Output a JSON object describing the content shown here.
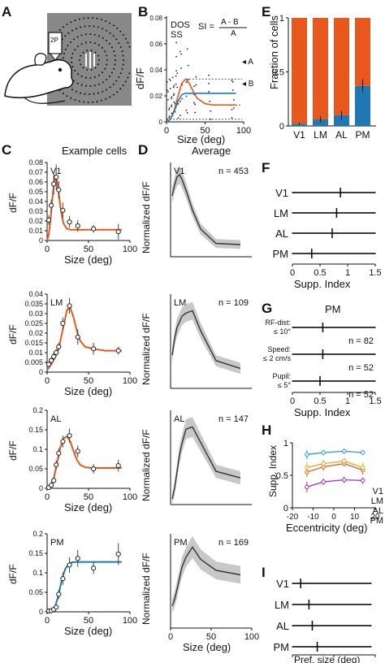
{
  "panel_letters": {
    "A": "A",
    "B": "B",
    "C": "C",
    "D": "D",
    "E": "E",
    "F": "F",
    "G": "G",
    "H": "H",
    "I": "I"
  },
  "panel_a": {
    "scope_label": "2P"
  },
  "panel_b": {
    "ylabel": "dF/F",
    "xlabel": "Size (deg)",
    "legend": [
      "DOS",
      "SS"
    ],
    "formula_lhs": "SI =",
    "formula_num": "A - B",
    "formula_den": "A",
    "marker_a": "◂ A",
    "marker_b": "◂ B",
    "xticks": [
      "0",
      "50",
      "100"
    ],
    "yticks": [
      "0",
      "0.02",
      "0.04",
      "0.06",
      "0.08"
    ]
  },
  "panel_c_title": "Example cells",
  "panel_d_title": "Average",
  "panel_e": {
    "ylabel": "Fraction of cells",
    "yticks": [
      "0",
      "0.5",
      "1"
    ]
  },
  "panel_f": {
    "xlabel": "Supp. Index",
    "xticks": [
      "0",
      "0.5",
      "1",
      "1.5"
    ]
  },
  "panel_g": {
    "title": "PM",
    "xlabel": "Supp. Index",
    "xticks": [
      "0",
      "0.5",
      "1",
      "1.5"
    ]
  },
  "panel_h": {
    "ylabel": "Supp. Index",
    "xlabel": "Eccentricity (deg)",
    "xticks": [
      "-20",
      "-10",
      "0",
      "10",
      "20"
    ],
    "yticks": [
      "0",
      "0.5",
      "1"
    ]
  },
  "panel_i": {
    "xlabel": "Pref. size (deg)",
    "xticks": [
      "0",
      "50",
      "100"
    ]
  },
  "colors": {
    "dos": "#e8581c",
    "ss": "#1f78b4",
    "v1": "#1f9bd7",
    "lm": "#e0621f",
    "al": "#eaa520",
    "pm": "#9b30b0",
    "gray": "#888888"
  },
  "chart_data": [
    {
      "id": "B",
      "type": "scatter",
      "xlabel": "Size (deg)",
      "ylabel": "dF/F",
      "xlim": [
        0,
        100
      ],
      "ylim": [
        0,
        0.08
      ],
      "series": [
        {
          "name": "DOS",
          "x": [
            0,
            5,
            10,
            15,
            20,
            25,
            30,
            35,
            40,
            50,
            60,
            70,
            80,
            90
          ],
          "values": [
            0.0,
            0.002,
            0.009,
            0.02,
            0.03,
            0.033,
            0.029,
            0.023,
            0.018,
            0.014,
            0.013,
            0.013,
            0.013,
            0.013
          ]
        },
        {
          "name": "SS",
          "x": [
            0,
            5,
            10,
            15,
            20,
            25,
            30,
            40,
            60,
            80,
            90
          ],
          "values": [
            0.0,
            0.002,
            0.008,
            0.016,
            0.021,
            0.022,
            0.022,
            0.022,
            0.022,
            0.022,
            0.022
          ]
        }
      ],
      "annotations": {
        "A": 0.033,
        "B": 0.013
      }
    },
    {
      "id": "C-V1",
      "type": "line",
      "area": "V1",
      "xlabel": "Size (deg)",
      "ylabel": "dF/F",
      "xlim": [
        0,
        100
      ],
      "ylim": [
        0,
        0.08
      ],
      "yticks": [
        0,
        0.01,
        0.02,
        0.03,
        0.04,
        0.05,
        0.06,
        0.07,
        0.08
      ],
      "xticks": [
        0,
        50,
        100
      ],
      "points": {
        "x": [
          2,
          5,
          8,
          11,
          14,
          19,
          27,
          37,
          56,
          86
        ],
        "values": [
          0.021,
          0.036,
          0.058,
          0.065,
          0.052,
          0.031,
          0.019,
          0.015,
          0.012,
          0.009
        ],
        "err": [
          0.005,
          0.006,
          0.011,
          0.013,
          0.009,
          0.008,
          0.006,
          0.006,
          0.004,
          0.008
        ]
      },
      "fit": {
        "color": "DOS",
        "x": [
          0,
          2,
          4,
          6,
          8,
          10,
          12,
          14,
          16,
          18,
          20,
          24,
          28,
          34,
          40,
          50,
          60,
          70,
          80,
          90
        ],
        "values": [
          0.0,
          0.006,
          0.02,
          0.04,
          0.057,
          0.065,
          0.061,
          0.049,
          0.035,
          0.024,
          0.017,
          0.012,
          0.011,
          0.011,
          0.011,
          0.011,
          0.011,
          0.011,
          0.011,
          0.011
        ]
      }
    },
    {
      "id": "C-LM",
      "type": "line",
      "area": "LM",
      "xlabel": "Size (deg)",
      "ylabel": "dF/F",
      "xlim": [
        0,
        100
      ],
      "ylim": [
        0,
        0.04
      ],
      "yticks": [
        0,
        0.005,
        0.01,
        0.015,
        0.02,
        0.025,
        0.03,
        0.035,
        0.04
      ],
      "xticks": [
        0,
        50,
        100
      ],
      "points": {
        "x": [
          2,
          5,
          8,
          11,
          14,
          19,
          27,
          37,
          56,
          86
        ],
        "values": [
          0.004,
          0.006,
          0.008,
          0.01,
          0.013,
          0.025,
          0.034,
          0.018,
          0.012,
          0.011
        ],
        "err": [
          0.001,
          0.0015,
          0.002,
          0.002,
          0.002,
          0.003,
          0.004,
          0.004,
          0.003,
          0.002
        ]
      },
      "fit": {
        "color": "DOS",
        "x": [
          0,
          5,
          10,
          15,
          20,
          24,
          28,
          32,
          36,
          40,
          46,
          55,
          70,
          90
        ],
        "values": [
          0.001,
          0.004,
          0.008,
          0.014,
          0.024,
          0.032,
          0.033,
          0.028,
          0.021,
          0.016,
          0.013,
          0.012,
          0.011,
          0.011
        ]
      }
    },
    {
      "id": "C-AL",
      "type": "line",
      "area": "AL",
      "xlabel": "Size (deg)",
      "ylabel": "dF/F",
      "xlim": [
        0,
        100
      ],
      "ylim": [
        0,
        0.2
      ],
      "yticks": [
        0,
        0.05,
        0.1,
        0.15,
        0.2
      ],
      "xticks": [
        0,
        50,
        100
      ],
      "points": {
        "x": [
          2,
          5,
          8,
          11,
          14,
          19,
          27,
          37,
          56,
          86
        ],
        "values": [
          0.002,
          0.008,
          0.02,
          0.06,
          0.09,
          0.12,
          0.135,
          0.095,
          0.05,
          0.058
        ],
        "err": [
          0.003,
          0.005,
          0.008,
          0.012,
          0.013,
          0.015,
          0.018,
          0.015,
          0.012,
          0.015
        ]
      },
      "fit": {
        "color": "DOS",
        "x": [
          0,
          4,
          8,
          12,
          16,
          20,
          24,
          28,
          32,
          36,
          40,
          46,
          55,
          70,
          90
        ],
        "values": [
          0.0,
          0.007,
          0.025,
          0.065,
          0.105,
          0.128,
          0.133,
          0.12,
          0.095,
          0.073,
          0.06,
          0.054,
          0.052,
          0.052,
          0.052
        ]
      }
    },
    {
      "id": "C-PM",
      "type": "line",
      "area": "PM",
      "xlabel": "Size (deg)",
      "ylabel": "dF/F",
      "xlim": [
        0,
        100
      ],
      "ylim": [
        0,
        0.2
      ],
      "yticks": [
        0,
        0.05,
        0.1,
        0.15,
        0.2
      ],
      "xticks": [
        0,
        50,
        100
      ],
      "points": {
        "x": [
          2,
          5,
          8,
          11,
          14,
          19,
          27,
          37,
          56,
          86
        ],
        "values": [
          0.002,
          0.003,
          0.006,
          0.012,
          0.045,
          0.085,
          0.12,
          0.137,
          0.112,
          0.148
        ],
        "err": [
          0.003,
          0.003,
          0.004,
          0.005,
          0.012,
          0.016,
          0.02,
          0.022,
          0.015,
          0.028
        ]
      },
      "fit": {
        "color": "SS",
        "x": [
          0,
          5,
          10,
          14,
          18,
          22,
          26,
          30,
          35,
          40,
          50,
          60,
          70,
          80,
          90
        ],
        "values": [
          0.0,
          0.003,
          0.015,
          0.045,
          0.085,
          0.11,
          0.122,
          0.127,
          0.128,
          0.128,
          0.128,
          0.128,
          0.128,
          0.128,
          0.128
        ]
      }
    },
    {
      "id": "D-V1",
      "type": "line",
      "area": "V1",
      "n_label": "n = 453",
      "ylabel": "Normalized dF/F",
      "xlim": [
        0,
        100
      ],
      "ylim": [
        0,
        0.85
      ],
      "x": [
        2,
        5,
        8,
        11,
        14,
        19,
        27,
        37,
        56,
        86
      ],
      "values": [
        0.55,
        0.65,
        0.72,
        0.74,
        0.7,
        0.6,
        0.42,
        0.25,
        0.12,
        0.11
      ],
      "band": [
        0.07,
        0.07,
        0.08,
        0.08,
        0.08,
        0.07,
        0.06,
        0.05,
        0.04,
        0.04
      ]
    },
    {
      "id": "D-LM",
      "type": "line",
      "area": "LM",
      "n_label": "n = 109",
      "ylabel": "Normalized dF/F",
      "xlim": [
        0,
        100
      ],
      "ylim": [
        0,
        0.85
      ],
      "x": [
        2,
        5,
        8,
        11,
        14,
        19,
        27,
        37,
        56,
        86
      ],
      "values": [
        0.3,
        0.45,
        0.55,
        0.6,
        0.65,
        0.68,
        0.7,
        0.52,
        0.25,
        0.18
      ],
      "band": [
        0.07,
        0.07,
        0.08,
        0.08,
        0.08,
        0.08,
        0.08,
        0.07,
        0.05,
        0.05
      ]
    },
    {
      "id": "D-AL",
      "type": "line",
      "area": "AL",
      "n_label": "n = 147",
      "ylabel": "Normalized dF/F",
      "xlim": [
        0,
        100
      ],
      "ylim": [
        0,
        0.85
      ],
      "x": [
        2,
        5,
        8,
        11,
        14,
        19,
        27,
        37,
        56,
        86
      ],
      "values": [
        0.05,
        0.15,
        0.3,
        0.45,
        0.55,
        0.68,
        0.7,
        0.56,
        0.3,
        0.24
      ],
      "band": [
        0.05,
        0.06,
        0.07,
        0.08,
        0.08,
        0.09,
        0.09,
        0.08,
        0.06,
        0.06
      ]
    },
    {
      "id": "D-PM",
      "type": "line",
      "area": "PM",
      "n_label": "n = 169",
      "ylabel": "Normalized dF/F",
      "xlim": [
        0,
        100
      ],
      "ylim": [
        0,
        0.85
      ],
      "x": [
        2,
        5,
        8,
        11,
        14,
        19,
        27,
        37,
        56,
        86
      ],
      "values": [
        0.2,
        0.26,
        0.35,
        0.45,
        0.55,
        0.64,
        0.73,
        0.62,
        0.52,
        0.48
      ],
      "band": [
        0.06,
        0.07,
        0.08,
        0.08,
        0.09,
        0.09,
        0.1,
        0.09,
        0.08,
        0.08
      ]
    },
    {
      "id": "E",
      "type": "bar",
      "ylabel": "Fraction of cells",
      "categories": [
        "V1",
        "LM",
        "AL",
        "PM"
      ],
      "ylim": [
        0,
        1
      ],
      "series": [
        {
          "name": "SS",
          "values": [
            0.02,
            0.06,
            0.1,
            0.37
          ],
          "err": [
            0.01,
            0.03,
            0.04,
            0.06
          ]
        },
        {
          "name": "DOS",
          "values": [
            0.98,
            0.94,
            0.9,
            0.63
          ]
        }
      ]
    },
    {
      "id": "F",
      "type": "violin",
      "xlabel": "Supp. Index",
      "xlim": [
        0,
        1.5
      ],
      "categories": [
        "V1",
        "LM",
        "AL",
        "PM"
      ],
      "medians": [
        0.87,
        0.8,
        0.72,
        0.35
      ]
    },
    {
      "id": "G",
      "type": "violin",
      "title": "PM",
      "xlabel": "Supp. Index",
      "xlim": [
        0,
        1.5
      ],
      "categories": [
        "RF-dist: ≤ 10°",
        "Speed: ≤ 2 cm/s",
        "Pupil: ≤ 5°"
      ],
      "medians": [
        0.55,
        0.55,
        0.5
      ],
      "n_labels": [
        "n = 82",
        "n = 52",
        "n = 52"
      ]
    },
    {
      "id": "H",
      "type": "line",
      "xlabel": "Eccentricity (deg)",
      "ylabel": "Supp. Index",
      "xlim": [
        -20,
        20
      ],
      "ylim": [
        0,
        1
      ],
      "x": [
        -13,
        -5,
        5,
        14
      ],
      "series": [
        {
          "name": "V1",
          "values": [
            0.82,
            0.85,
            0.87,
            0.85
          ],
          "err": [
            0.07,
            0.04,
            0.04,
            0.04
          ]
        },
        {
          "name": "LM",
          "values": [
            0.55,
            0.63,
            0.68,
            0.58
          ],
          "err": [
            0.08,
            0.06,
            0.05,
            0.07
          ]
        },
        {
          "name": "AL",
          "values": [
            0.62,
            0.68,
            0.72,
            0.62
          ],
          "err": [
            0.08,
            0.06,
            0.05,
            0.07
          ]
        },
        {
          "name": "PM",
          "values": [
            0.32,
            0.4,
            0.43,
            0.42
          ],
          "err": [
            0.08,
            0.05,
            0.05,
            0.05
          ]
        }
      ]
    },
    {
      "id": "I",
      "type": "violin",
      "xlabel": "Pref. size (deg)",
      "xlim": [
        0,
        100
      ],
      "categories": [
        "V1",
        "LM",
        "AL",
        "PM"
      ],
      "medians": [
        10,
        20,
        24,
        30
      ]
    }
  ]
}
